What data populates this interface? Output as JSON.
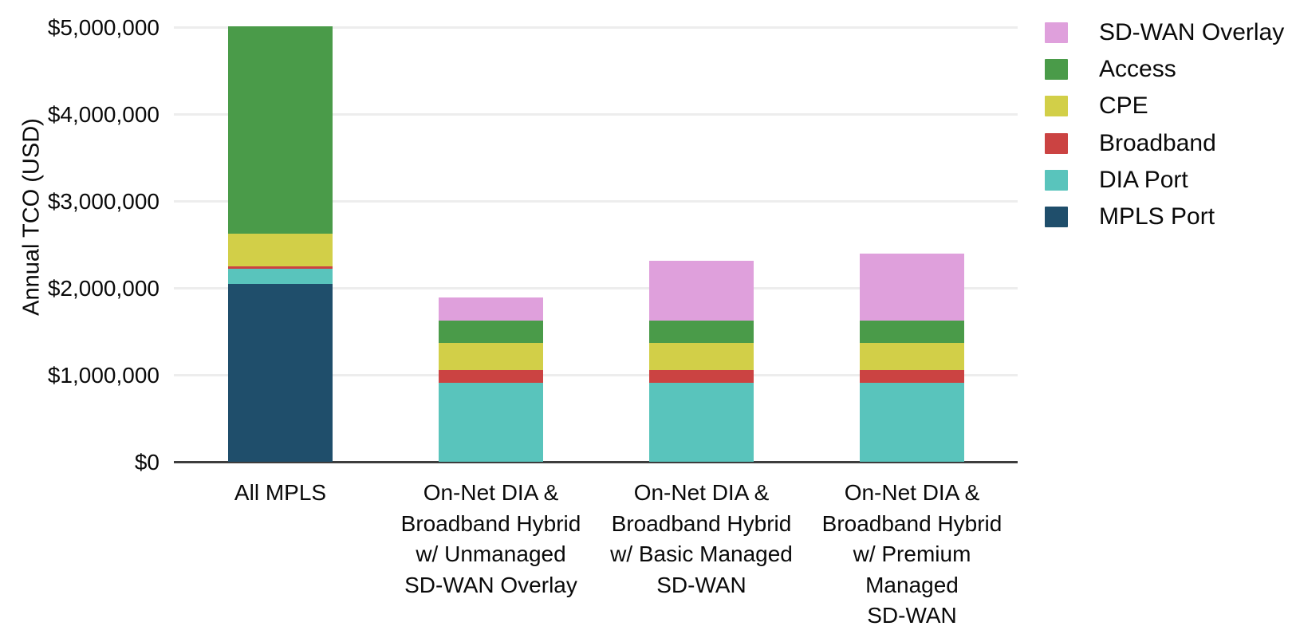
{
  "chart_data": {
    "type": "bar",
    "stacked": true,
    "title": "",
    "xlabel": "",
    "ylabel": "Annual TCO (USD)",
    "ylim": [
      0,
      5000000
    ],
    "grid": true,
    "legend_position": "top-right",
    "yticks": [
      {
        "value": 0,
        "label": "$0"
      },
      {
        "value": 1000000,
        "label": "$1,000,000"
      },
      {
        "value": 2000000,
        "label": "$2,000,000"
      },
      {
        "value": 3000000,
        "label": "$3,000,000"
      },
      {
        "value": 4000000,
        "label": "$4,000,000"
      },
      {
        "value": 5000000,
        "label": "$5,000,000"
      }
    ],
    "categories": [
      "All MPLS",
      "On-Net DIA & Broadband Hybrid w/ Unmanaged SD-WAN Overlay",
      "On-Net DIA & Broadband Hybrid w/ Basic Managed SD-WAN",
      "On-Net DIA & Broadband Hybrid w/ Premium Managed SD-WAN"
    ],
    "category_label_lines": [
      [
        "All MPLS"
      ],
      [
        "On-Net DIA &",
        "Broadband Hybrid",
        "w/ Unmanaged",
        "SD-WAN Overlay"
      ],
      [
        "On-Net DIA &",
        "Broadband Hybrid",
        "w/ Basic Managed",
        "SD-WAN"
      ],
      [
        "On-Net DIA &",
        "Broadband Hybrid",
        "w/ Premium",
        "Managed",
        "SD-WAN"
      ]
    ],
    "series": [
      {
        "name": "MPLS Port",
        "color": "#1f4e6b",
        "values": [
          2055000,
          0,
          0,
          0
        ]
      },
      {
        "name": "DIA Port",
        "color": "#59c4bc",
        "values": [
          170000,
          915000,
          915000,
          915000
        ]
      },
      {
        "name": "Broadband",
        "color": "#cb4342",
        "values": [
          30000,
          145000,
          145000,
          145000
        ]
      },
      {
        "name": "CPE",
        "color": "#d2cf48",
        "values": [
          375000,
          315000,
          315000,
          315000
        ]
      },
      {
        "name": "Access",
        "color": "#4a9b49",
        "values": [
          2390000,
          255000,
          255000,
          255000
        ]
      },
      {
        "name": "SD-WAN Overlay",
        "color": "#dfa0dc",
        "values": [
          0,
          265000,
          685000,
          770000
        ]
      }
    ],
    "legend_order": [
      "SD-WAN Overlay",
      "Access",
      "CPE",
      "Broadband",
      "DIA Port",
      "MPLS Port"
    ]
  },
  "colors": {
    "background": "#ffffff",
    "gridline": "#ededed",
    "axis_line": "#3d3d3d",
    "text": "#0a0a0a"
  }
}
